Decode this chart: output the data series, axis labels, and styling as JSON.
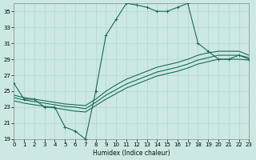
{
  "xlabel": "Humidex (Indice chaleur)",
  "xlim": [
    0,
    23
  ],
  "ylim": [
    19,
    36
  ],
  "xticks": [
    0,
    1,
    2,
    3,
    4,
    5,
    6,
    7,
    8,
    9,
    10,
    11,
    12,
    13,
    14,
    15,
    16,
    17,
    18,
    19,
    20,
    21,
    22,
    23
  ],
  "yticks": [
    19,
    21,
    23,
    25,
    27,
    29,
    31,
    33,
    35
  ],
  "bg_color": "#cce8e4",
  "line_color": "#1a6b5a",
  "grid_color": "#b0d4d0",
  "main_curve": {
    "x": [
      0,
      1,
      2,
      3,
      4,
      5,
      6,
      7,
      8,
      9,
      10,
      11,
      12,
      13,
      14,
      15,
      16,
      17,
      18,
      19,
      20,
      21,
      22,
      23
    ],
    "y": [
      26,
      24,
      24,
      23,
      23,
      20.5,
      20,
      19,
      25,
      32,
      34,
      36,
      35.8,
      35.5,
      35,
      35,
      35.5,
      36,
      31,
      30,
      29,
      29,
      29.5,
      29
    ]
  },
  "diag_lines": [
    {
      "x": [
        0,
        1,
        2,
        3,
        4,
        5,
        6,
        7,
        8,
        9,
        10,
        11,
        12,
        13,
        14,
        15,
        16,
        17,
        18,
        19,
        20,
        21,
        22,
        23
      ],
      "y": [
        24.5,
        24.2,
        24.0,
        23.8,
        23.6,
        23.4,
        23.3,
        23.2,
        24.0,
        25.0,
        25.8,
        26.5,
        27.0,
        27.5,
        28.0,
        28.3,
        28.6,
        29.0,
        29.5,
        29.8,
        30.0,
        30.0,
        30.0,
        29.5
      ]
    },
    {
      "x": [
        0,
        1,
        2,
        3,
        4,
        5,
        6,
        7,
        8,
        9,
        10,
        11,
        12,
        13,
        14,
        15,
        16,
        17,
        18,
        19,
        20,
        21,
        22,
        23
      ],
      "y": [
        24.2,
        23.9,
        23.7,
        23.5,
        23.3,
        23.1,
        23.0,
        22.8,
        23.6,
        24.5,
        25.2,
        25.9,
        26.4,
        26.9,
        27.4,
        27.7,
        28.0,
        28.4,
        28.9,
        29.2,
        29.5,
        29.5,
        29.5,
        29.2
      ]
    },
    {
      "x": [
        0,
        1,
        2,
        3,
        4,
        5,
        6,
        7,
        8,
        9,
        10,
        11,
        12,
        13,
        14,
        15,
        16,
        17,
        18,
        19,
        20,
        21,
        22,
        23
      ],
      "y": [
        23.8,
        23.5,
        23.3,
        23.1,
        22.9,
        22.7,
        22.5,
        22.4,
        23.2,
        24.0,
        24.7,
        25.4,
        25.9,
        26.4,
        26.9,
        27.2,
        27.5,
        27.9,
        28.4,
        28.7,
        29.0,
        29.0,
        29.0,
        28.9
      ]
    }
  ]
}
